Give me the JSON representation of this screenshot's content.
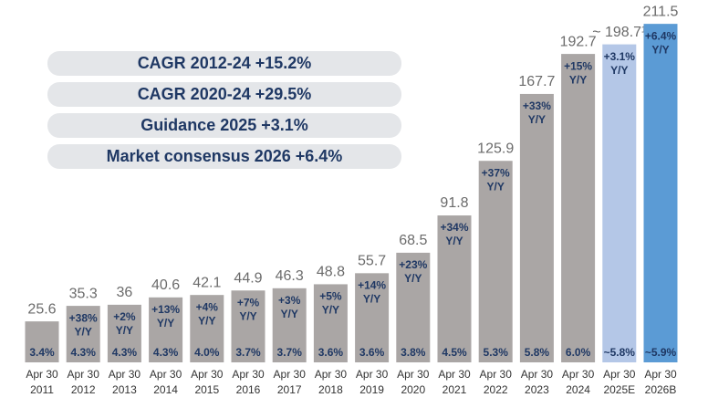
{
  "chart_data": {
    "type": "bar",
    "categories": [
      [
        "Apr 30",
        "2011"
      ],
      [
        "Apr 30",
        "2012"
      ],
      [
        "Apr 30",
        "2013"
      ],
      [
        "Apr 30",
        "2014"
      ],
      [
        "Apr 30",
        "2015"
      ],
      [
        "Apr 30",
        "2016"
      ],
      [
        "Apr 30",
        "2017"
      ],
      [
        "Apr 30",
        "2018"
      ],
      [
        "Apr 30",
        "2019"
      ],
      [
        "Apr 30",
        "2020"
      ],
      [
        "Apr 30",
        "2021"
      ],
      [
        "Apr 30",
        "2022"
      ],
      [
        "Apr 30",
        "2023"
      ],
      [
        "Apr 30",
        "2024"
      ],
      [
        "Apr 30",
        "2025E"
      ],
      [
        "Apr 30",
        "2026B"
      ]
    ],
    "values": [
      25.6,
      35.3,
      36,
      40.6,
      42.1,
      44.9,
      46.3,
      48.8,
      55.7,
      68.5,
      91.8,
      125.9,
      167.7,
      192.7,
      198.7,
      211.5
    ],
    "value_labels": [
      "25.6",
      "35.3",
      "36",
      "40.6",
      "42.1",
      "44.9",
      "46.3",
      "48.8",
      "55.7",
      "68.5",
      "91.8",
      "125.9",
      "167.7",
      "192.7",
      "~ 198.7¹",
      "211.5"
    ],
    "colors": [
      "#aaa6a5",
      "#aaa6a5",
      "#aaa6a5",
      "#aaa6a5",
      "#aaa6a5",
      "#aaa6a5",
      "#aaa6a5",
      "#aaa6a5",
      "#aaa6a5",
      "#aaa6a5",
      "#aaa6a5",
      "#aaa6a5",
      "#aaa6a5",
      "#aaa6a5",
      "#b4c7e7",
      "#5b9bd5"
    ],
    "growth_labels": [
      null,
      "+38%",
      "+2%",
      "+13%",
      "+4%",
      "+7%",
      "+3%",
      "+5%",
      "+14%",
      "+23%",
      "+34%",
      "+37%",
      "+33%",
      "+15%",
      "+3.1%",
      "+6.4%"
    ],
    "growth_unit": "Y/Y",
    "bottom_labels": [
      "3.4%",
      "4.3%",
      "4.3%",
      "4.3%",
      "4.0%",
      "3.7%",
      "3.7%",
      "3.6%",
      "3.6%",
      "3.8%",
      "4.5%",
      "5.3%",
      "5.8%",
      "6.0%",
      "~5.8%",
      "~5.9%"
    ],
    "annotations": [
      "CAGR 2012-24 +15.2%",
      "CAGR 2020-24 +29.5%",
      "Guidance 2025 +3.1%",
      "Market consensus 2026 +6.4%"
    ],
    "ylim": [
      0,
      215
    ]
  }
}
